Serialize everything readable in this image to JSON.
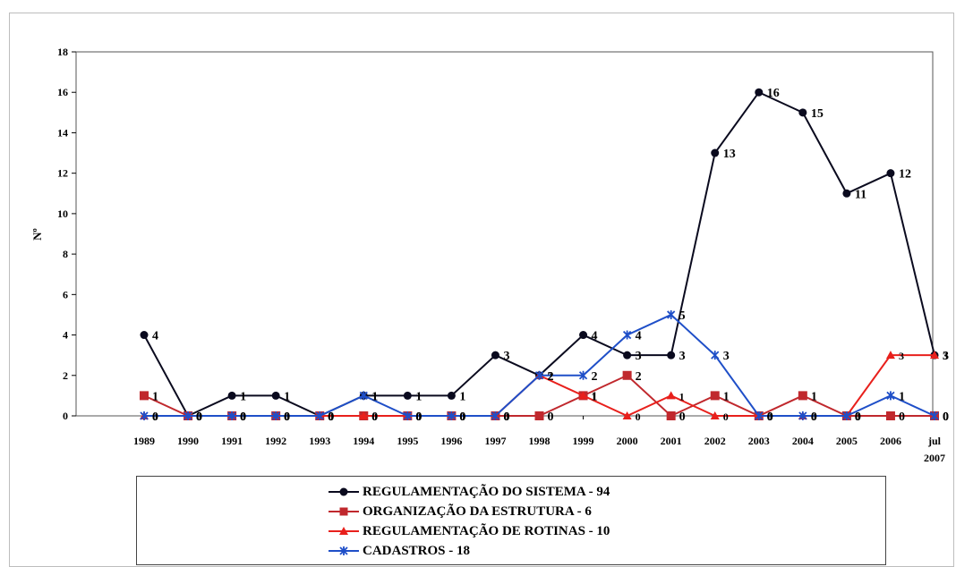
{
  "chart_data": {
    "type": "line",
    "ylabel": "Nº",
    "ylim": [
      0,
      18
    ],
    "yticks": [
      0,
      2,
      4,
      6,
      8,
      10,
      12,
      14,
      16,
      18
    ],
    "categories": [
      "1989",
      "1990",
      "1991",
      "1992",
      "1993",
      "1994",
      "1995",
      "1996",
      "1997",
      "1998",
      "1999",
      "2000",
      "2001",
      "2002",
      "2003",
      "2004",
      "2005",
      "2006",
      "jul 2007"
    ],
    "series": [
      {
        "name": "REGULAMENTAÇÃO DO SISTEMA - 94",
        "color": "#0a0a1e",
        "marker": "circle",
        "values": [
          4,
          0,
          1,
          1,
          0,
          1,
          1,
          1,
          3,
          2,
          4,
          3,
          3,
          13,
          16,
          15,
          11,
          12,
          3
        ]
      },
      {
        "name": "ORGANIZAÇÃO DA ESTRUTURA - 6",
        "color": "#c0282d",
        "marker": "square",
        "values": [
          1,
          0,
          0,
          0,
          0,
          0,
          0,
          0,
          0,
          0,
          1,
          2,
          0,
          1,
          0,
          1,
          0,
          0,
          0
        ]
      },
      {
        "name": "REGULAMENTAÇÃO DE ROTINAS - 10",
        "color": "#e8201c",
        "marker": "triangle",
        "values": [
          0,
          0,
          0,
          0,
          0,
          0,
          0,
          0,
          0,
          2,
          1,
          0,
          1,
          0,
          0,
          0,
          0,
          3,
          3
        ]
      },
      {
        "name": "CADASTROS - 18",
        "color": "#1f4fc8",
        "marker": "star",
        "values": [
          0,
          0,
          0,
          0,
          0,
          1,
          0,
          0,
          0,
          2,
          2,
          4,
          5,
          3,
          0,
          0,
          0,
          1,
          0
        ]
      }
    ],
    "grid": false,
    "legend_position": "bottom"
  }
}
